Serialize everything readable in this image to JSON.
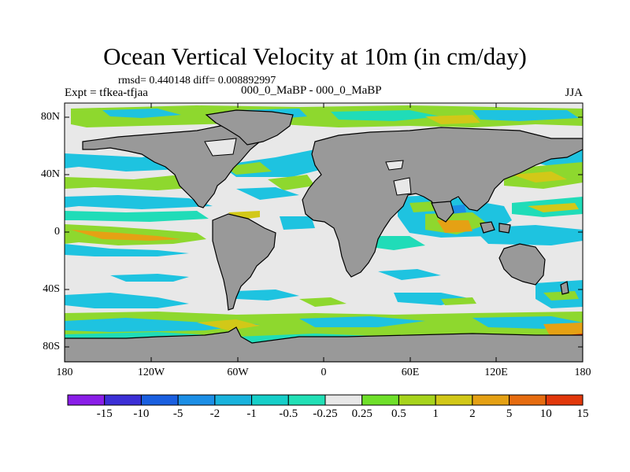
{
  "title": "Ocean Vertical Velocity at 10m (in cm/day)",
  "subtitle_stats": "rmsd= 0.440148 diff= 0.008892997",
  "subtitle_left": "Expt = tfkea-tfjaa",
  "subtitle_center": "000_0_MaBP - 000_0_MaBP",
  "subtitle_right": "JJA",
  "lat_labels": [
    "80N",
    "40N",
    "0",
    "40S",
    "80S"
  ],
  "lon_labels": [
    "180",
    "120W",
    "60W",
    "0",
    "60E",
    "120E",
    "180"
  ],
  "colorbar": {
    "labels": [
      "-15",
      "-10",
      "-5",
      "-2",
      "-1",
      "-0.5",
      "-0.25",
      "0.25",
      "0.5",
      "1",
      "2",
      "5",
      "10",
      "15"
    ],
    "colors": [
      "#8a1ee8",
      "#3c2fd6",
      "#1a5fe0",
      "#1c8fe6",
      "#19b3dd",
      "#16cfc9",
      "#22e0b6",
      "#e8e8e8",
      "#6fe02a",
      "#a7d41c",
      "#d2c818",
      "#e5a114",
      "#e66c10",
      "#e2380b"
    ]
  },
  "colors": {
    "land": "#999999",
    "ocean": "#e8e8e8",
    "positive_green": "#8ed82e",
    "positive_yellow": "#d2c818",
    "positive_orange": "#e5a114",
    "negative_cyan": "#1ec3e0",
    "negative_teal": "#20dcb8",
    "negative_blue": "#1c8fe6"
  }
}
